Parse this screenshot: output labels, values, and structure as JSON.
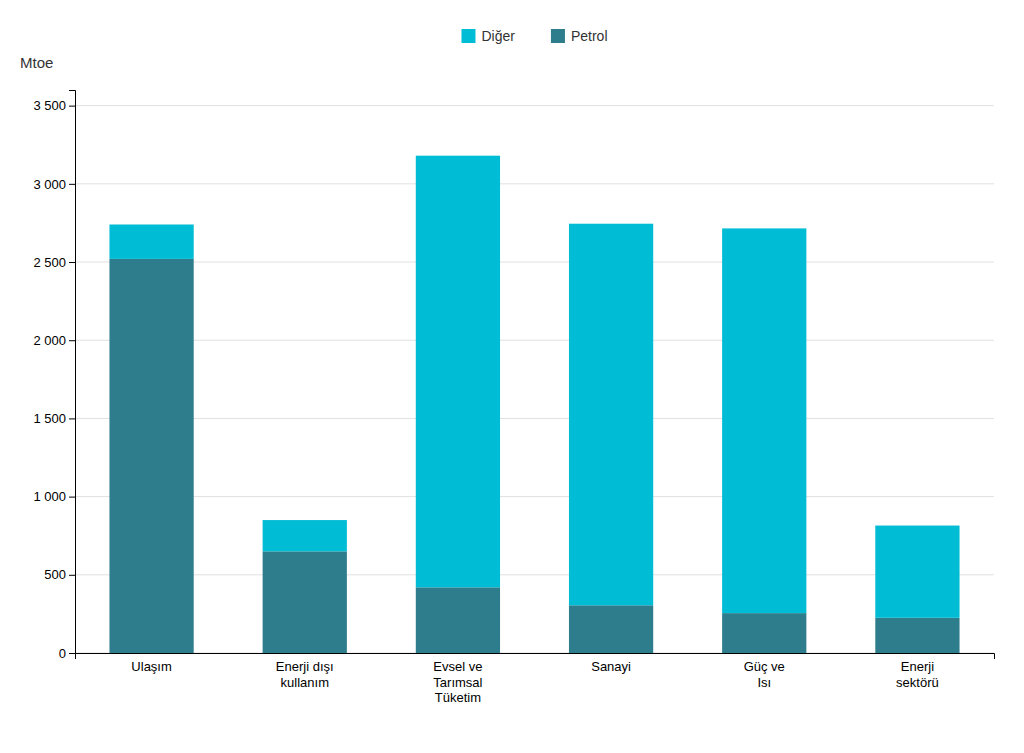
{
  "chart_data": {
    "type": "bar",
    "stacked": true,
    "y_label": "Mtoe",
    "categories": [
      "Ulaşım",
      "Enerji dışı\nkullanım",
      "Evsel ve\nTarımsal\nTüketim",
      "Sanayi",
      "Güç ve\nIsı",
      "Enerji\nsektörü"
    ],
    "series": [
      {
        "name": "Petrol",
        "color": "#2e7d8c",
        "values": [
          2520,
          650,
          420,
          305,
          255,
          225
        ]
      },
      {
        "name": "Diğer",
        "color": "#00bcd4",
        "values": [
          220,
          200,
          2760,
          2440,
          2460,
          590
        ]
      }
    ],
    "ylim": [
      0,
      3600
    ],
    "yticks": [
      0,
      500,
      {
        "value": 1000,
        "label": "1 000"
      },
      {
        "value": 1500,
        "label": "1 500"
      },
      {
        "value": 2000,
        "label": "2 000"
      },
      {
        "value": 2500,
        "label": "2 500"
      },
      {
        "value": 3000,
        "label": "3 000"
      },
      {
        "value": 3500,
        "label": "3 500"
      }
    ],
    "grid": true,
    "legend": "top"
  }
}
